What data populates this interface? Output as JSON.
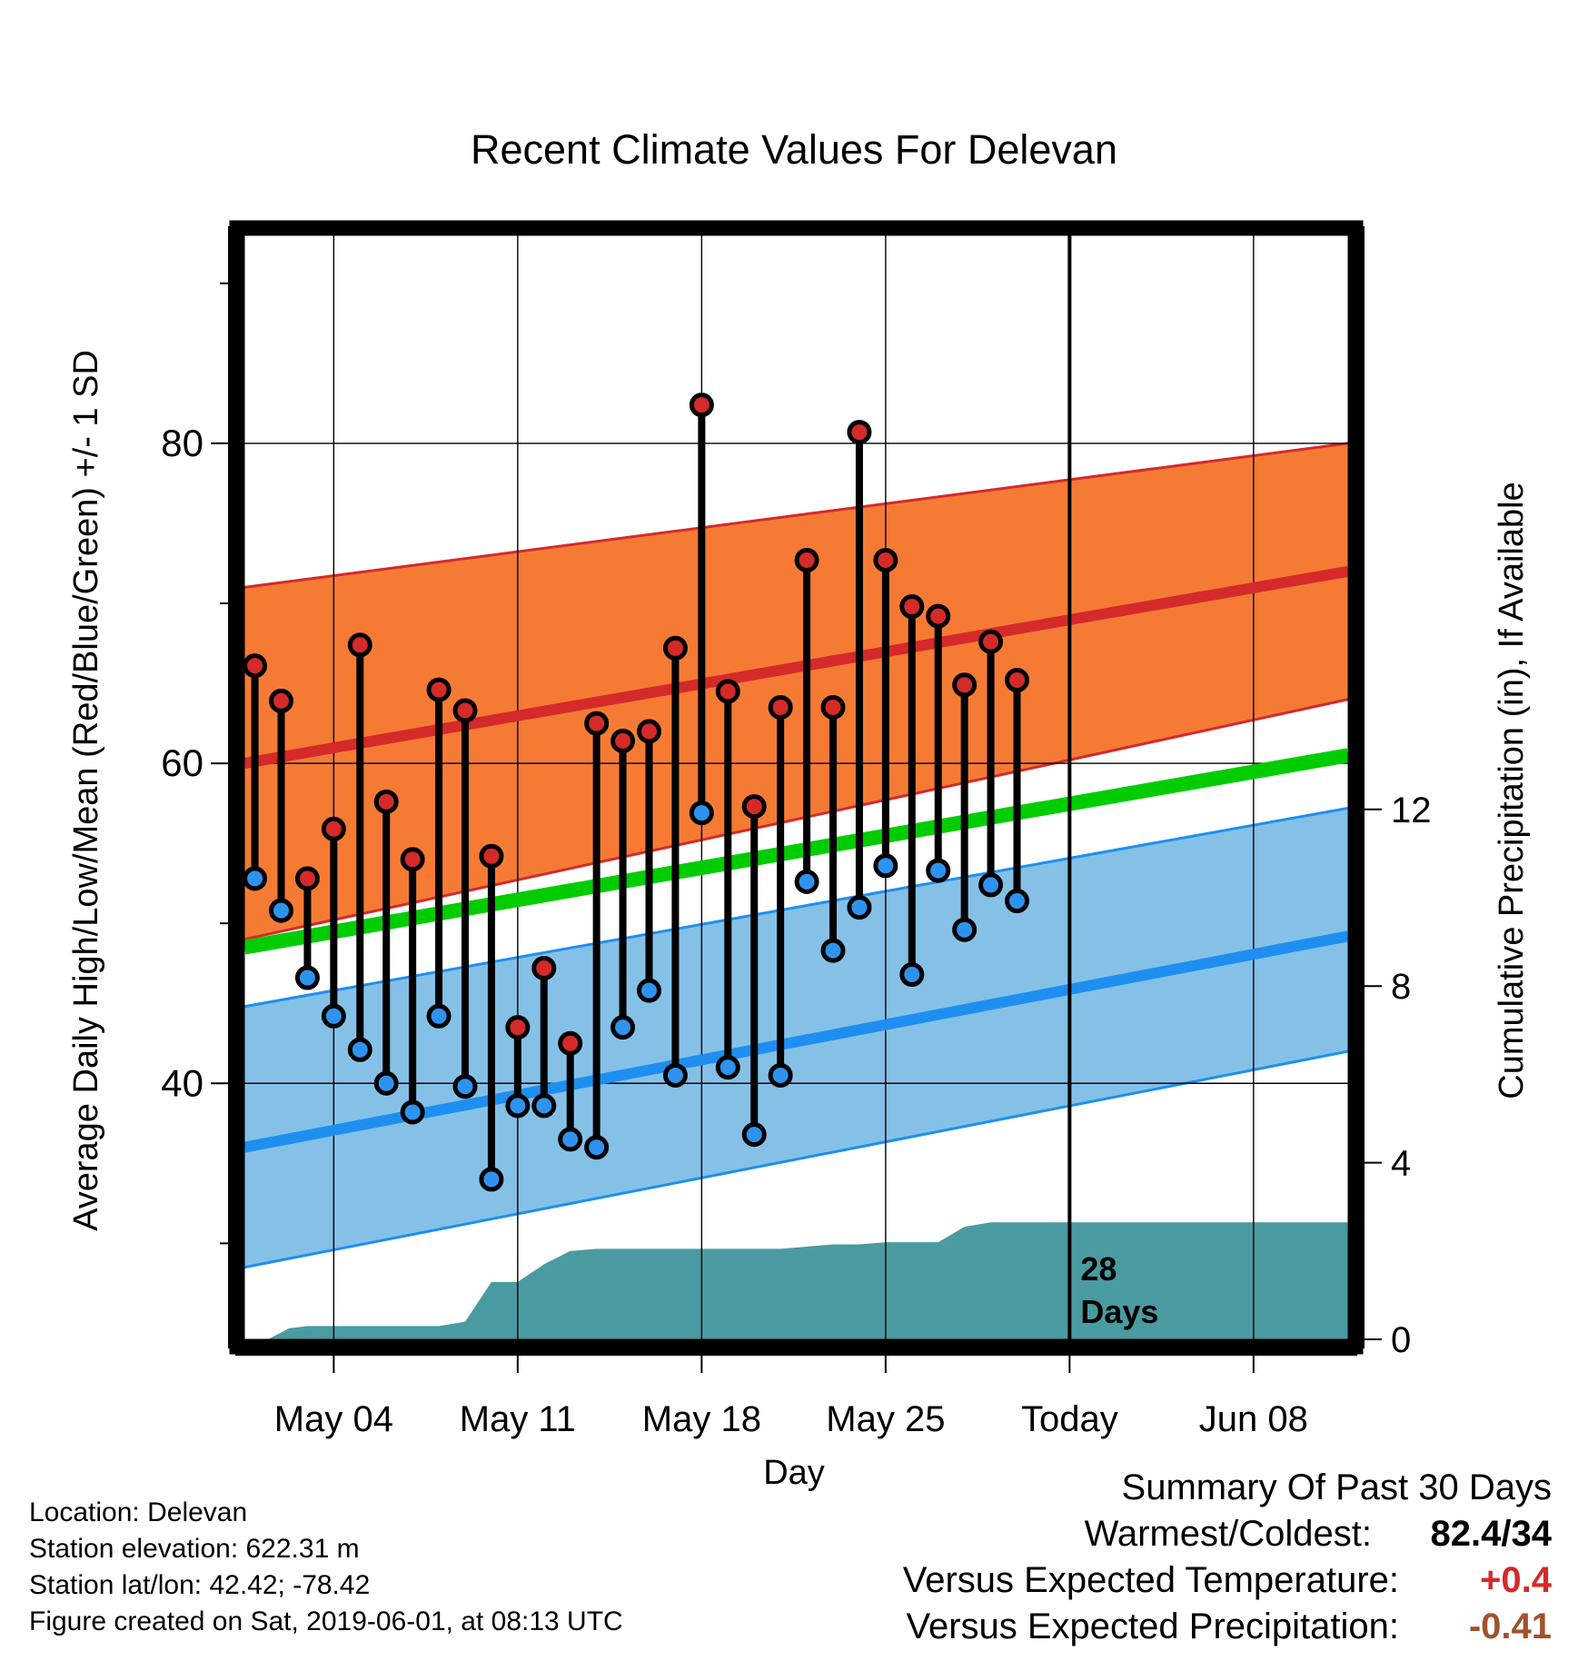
{
  "chart_data": {
    "type": "line",
    "title": "Recent Climate Values For Delevan",
    "xlabel": "Day",
    "ylabel": "Average Daily High/Low/Mean (Red/Blue/Green) +/- 1 SD",
    "y2label": "Cumulative Precipitation (in), If Available",
    "ylim": [
      24,
      93
    ],
    "y2lim": [
      0,
      25
    ],
    "yticks": [
      40,
      60,
      80
    ],
    "y2ticks": [
      0,
      4,
      8,
      12
    ],
    "xlim": [
      0.6,
      42.6
    ],
    "xticks": [
      {
        "day": 4,
        "label": "May 04"
      },
      {
        "day": 11,
        "label": "May 11"
      },
      {
        "day": 18,
        "label": "May 18"
      },
      {
        "day": 25,
        "label": "May 25"
      },
      {
        "day": 32,
        "label": "Today"
      },
      {
        "day": 39,
        "label": "Jun 08"
      }
    ],
    "today_marker": {
      "day": 32,
      "label_line1": "28",
      "label_line2": "Days"
    },
    "normals": {
      "x": [
        0.6,
        42.6
      ],
      "high_mean": [
        60,
        72
      ],
      "high_upper": [
        71,
        80
      ],
      "high_lower": [
        49,
        64
      ],
      "mean": [
        48.5,
        60.5
      ],
      "low_mean": [
        36,
        49.2
      ],
      "low_upper": [
        44.8,
        57.2
      ],
      "low_lower": [
        28.5,
        42
      ]
    },
    "daily": {
      "day": [
        1,
        2,
        3,
        4,
        5,
        6,
        7,
        8,
        9,
        10,
        11,
        12,
        13,
        14,
        15,
        16,
        17,
        18,
        19,
        20,
        21,
        22,
        23,
        24,
        25,
        26,
        27,
        28,
        29,
        30
      ],
      "high": [
        66.1,
        63.9,
        52.8,
        55.9,
        67.4,
        57.6,
        54,
        64.6,
        63.3,
        54.2,
        43.5,
        47.2,
        42.5,
        62.5,
        61.4,
        62,
        67.2,
        82.4,
        64.5,
        57.3,
        63.5,
        72.7,
        63.5,
        80.7,
        72.7,
        69.8,
        69.2,
        64.9,
        67.6,
        65.2
      ],
      "low": [
        52.8,
        50.8,
        46.6,
        44.2,
        42.1,
        40,
        38.2,
        44.2,
        39.8,
        34,
        38.6,
        38.6,
        36.5,
        36,
        43.5,
        45.8,
        40.5,
        56.9,
        41,
        36.8,
        40.5,
        52.6,
        48.3,
        51,
        53.6,
        46.8,
        53.3,
        49.6,
        52.4,
        51.4
      ]
    },
    "precip": {
      "day": [
        1.5,
        2.3,
        3,
        4,
        5,
        6,
        7,
        8,
        9,
        10,
        10.7,
        11,
        12,
        13,
        14,
        15,
        16,
        17,
        18,
        19,
        20,
        21,
        22,
        23,
        24,
        25,
        26,
        27,
        28,
        29,
        30,
        31,
        32,
        33,
        34,
        35,
        36,
        37,
        38,
        39,
        40,
        41,
        42.6
      ],
      "value": [
        0,
        0.25,
        0.3,
        0.3,
        0.3,
        0.3,
        0.3,
        0.3,
        0.4,
        1.3,
        1.3,
        1.3,
        1.7,
        2.0,
        2.05,
        2.05,
        2.05,
        2.05,
        2.05,
        2.05,
        2.05,
        2.05,
        2.1,
        2.15,
        2.15,
        2.2,
        2.2,
        2.2,
        2.55,
        2.65,
        2.65,
        2.65,
        2.65,
        2.65,
        2.65,
        2.65,
        2.65,
        2.65,
        2.65,
        2.65,
        2.65,
        2.65,
        2.65
      ]
    },
    "colors": {
      "high_band": "#f57b35",
      "high_line": "#d42a2a",
      "low_band": "#85c1e7",
      "low_line": "#1e8ff0",
      "mean_line": "#00cc00",
      "precip": "#4a9ba1",
      "high_dot": "#d42a2a",
      "low_dot": "#2e93ef"
    },
    "grid": true
  },
  "footer": {
    "location": "Location: Delevan",
    "elevation": "Station elevation: 622.31 m",
    "latlon": "Station lat/lon: 42.42; -78.42",
    "created": "Figure created on Sat, 2019-06-01, at 08:13 UTC"
  },
  "summary": {
    "title": "Summary Of Past 30 Days",
    "warmest_coldest_label": "Warmest/Coldest:",
    "warmest_coldest_value": "82.4/34",
    "temp_label": "Versus Expected Temperature:",
    "temp_value": "+0.4",
    "precip_label": "Versus Expected Precipitation:",
    "precip_value": "-0.41"
  }
}
